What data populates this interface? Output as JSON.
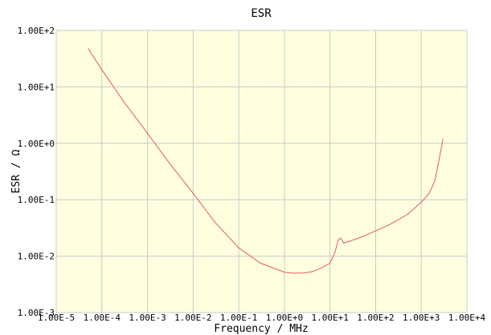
{
  "chart_data": {
    "type": "line",
    "title": "ESR",
    "xlabel": "Frequency / MHz",
    "ylabel": "ESR / Ω",
    "x_scale": "log",
    "y_scale": "log",
    "xlim": [
      1e-05,
      10000
    ],
    "ylim": [
      0.001,
      100
    ],
    "grid": true,
    "x_ticks": [
      1e-05,
      0.0001,
      0.001,
      0.01,
      0.1,
      1,
      10,
      100,
      1000,
      10000
    ],
    "x_tick_labels": [
      "1.00E-5",
      "1.00E-4",
      "1.00E-3",
      "1.00E-2",
      "1.00E-1",
      "1.00E+0",
      "1.00E+1",
      "1.00E+2",
      "1.00E+3",
      "1.00E+4"
    ],
    "y_ticks": [
      100,
      10,
      1,
      0.1,
      0.01,
      0.001
    ],
    "y_tick_labels": [
      "1.00E+2",
      "1.00E+1",
      "1.00E+0",
      "1.00E-1",
      "1.00E-2",
      "1.00E-3"
    ],
    "colors": {
      "plot_background": "#ffffe0",
      "grid": "#c8c8c8",
      "line": "#e35a5a"
    },
    "series": [
      {
        "x": [
          5e-05,
          6e-05,
          0.0001,
          0.0003,
          0.001,
          0.003,
          0.01,
          0.03,
          0.1,
          0.3,
          1,
          1.5,
          2.5,
          4,
          6,
          10,
          13,
          15,
          17,
          20,
          30,
          50,
          100,
          200,
          500,
          1000,
          1500,
          2000,
          2500,
          3000
        ],
        "y": [
          48,
          38,
          20,
          5.5,
          1.5,
          0.45,
          0.13,
          0.04,
          0.014,
          0.0075,
          0.0052,
          0.005,
          0.005,
          0.0053,
          0.006,
          0.0075,
          0.012,
          0.019,
          0.021,
          0.017,
          0.019,
          0.022,
          0.028,
          0.036,
          0.055,
          0.09,
          0.13,
          0.22,
          0.55,
          1.2
        ]
      }
    ]
  }
}
